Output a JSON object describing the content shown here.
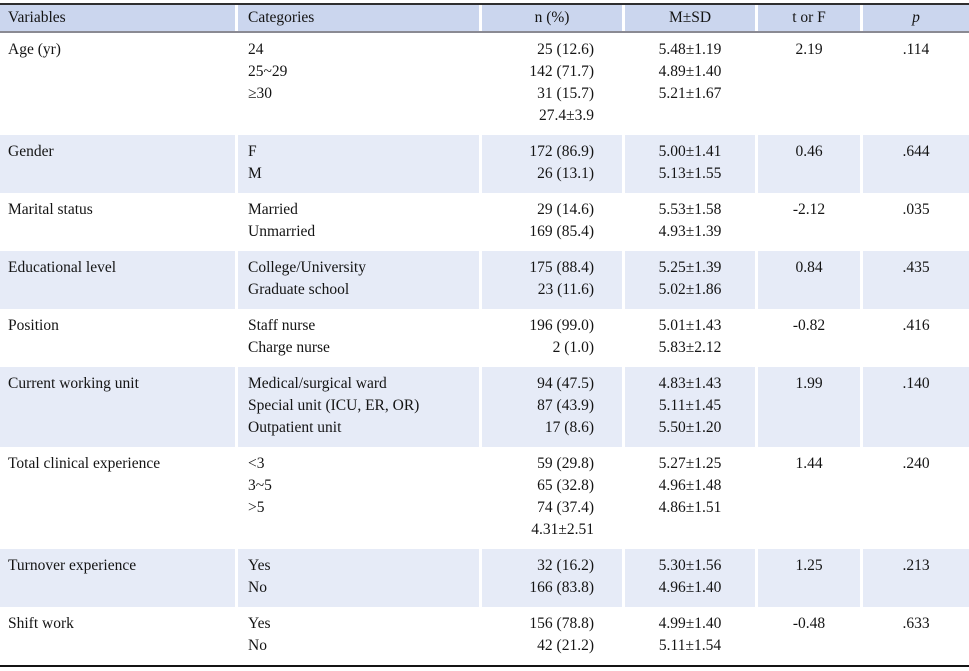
{
  "colors": {
    "header_bg": "#cbd6ee",
    "band_bg": "#e6ebf7",
    "top_border": "#2f2f2f",
    "header_underline": "#8a8a93",
    "bottom_border": "#141414",
    "text": "#141414",
    "page_bg": "#ffffff"
  },
  "table": {
    "columns": [
      {
        "key": "variable",
        "label": "Variables"
      },
      {
        "key": "categories",
        "label": "Categories"
      },
      {
        "key": "n_pct",
        "label": "n (%)"
      },
      {
        "key": "m_sd",
        "label": "M±SD"
      },
      {
        "key": "t_or_f",
        "label": "t or F"
      },
      {
        "key": "p",
        "label": "p"
      }
    ],
    "rows": [
      {
        "variable": "Age (yr)",
        "categories": [
          "24",
          "25~29",
          "≥30"
        ],
        "n_pct": [
          "25 (12.6)",
          "142 (71.7)",
          "31 (15.7)",
          "27.4±3.9"
        ],
        "m_sd": [
          "5.48±1.19",
          "4.89±1.40",
          "5.21±1.67"
        ],
        "t_or_f": "2.19",
        "p": ".114",
        "shaded": false
      },
      {
        "variable": "Gender",
        "categories": [
          "F",
          "M"
        ],
        "n_pct": [
          "172 (86.9)",
          "26 (13.1)"
        ],
        "m_sd": [
          "5.00±1.41",
          "5.13±1.55"
        ],
        "t_or_f": "0.46",
        "p": ".644",
        "shaded": true
      },
      {
        "variable": "Marital status",
        "categories": [
          "Married",
          "Unmarried"
        ],
        "n_pct": [
          "29 (14.6)",
          "169 (85.4)"
        ],
        "m_sd": [
          "5.53±1.58",
          "4.93±1.39"
        ],
        "t_or_f": "-2.12",
        "p": ".035",
        "shaded": false
      },
      {
        "variable": "Educational level",
        "categories": [
          "College/University",
          "Graduate school"
        ],
        "n_pct": [
          "175 (88.4)",
          "23 (11.6)"
        ],
        "m_sd": [
          "5.25±1.39",
          "5.02±1.86"
        ],
        "t_or_f": "0.84",
        "p": ".435",
        "shaded": true
      },
      {
        "variable": "Position",
        "categories": [
          "Staff nurse",
          "Charge nurse"
        ],
        "n_pct": [
          "196 (99.0)",
          "2 (1.0)"
        ],
        "m_sd": [
          "5.01±1.43",
          "5.83±2.12"
        ],
        "t_or_f": "-0.82",
        "p": ".416",
        "shaded": false
      },
      {
        "variable": "Current working unit",
        "categories": [
          "Medical/surgical ward",
          "Special unit (ICU, ER, OR)",
          "Outpatient unit"
        ],
        "n_pct": [
          "94 (47.5)",
          "87 (43.9)",
          "17 (8.6)"
        ],
        "m_sd": [
          "4.83±1.43",
          "5.11±1.45",
          "5.50±1.20"
        ],
        "t_or_f": "1.99",
        "p": ".140",
        "shaded": true
      },
      {
        "variable": "Total clinical experience",
        "categories": [
          "<3",
          "3~5",
          ">5"
        ],
        "n_pct": [
          "59 (29.8)",
          "65 (32.8)",
          "74 (37.4)",
          "4.31±2.51"
        ],
        "m_sd": [
          "5.27±1.25",
          "4.96±1.48",
          "4.86±1.51"
        ],
        "t_or_f": "1.44",
        "p": ".240",
        "shaded": false
      },
      {
        "variable": "Turnover experience",
        "categories": [
          "Yes",
          "No"
        ],
        "n_pct": [
          "32 (16.2)",
          "166 (83.8)"
        ],
        "m_sd": [
          "5.30±1.56",
          "4.96±1.40"
        ],
        "t_or_f": "1.25",
        "p": ".213",
        "shaded": true
      },
      {
        "variable": "Shift work",
        "categories": [
          "Yes",
          "No"
        ],
        "n_pct": [
          "156 (78.8)",
          "42 (21.2)"
        ],
        "m_sd": [
          "4.99±1.40",
          "5.11±1.54"
        ],
        "t_or_f": "-0.48",
        "p": ".633",
        "shaded": false
      }
    ]
  }
}
